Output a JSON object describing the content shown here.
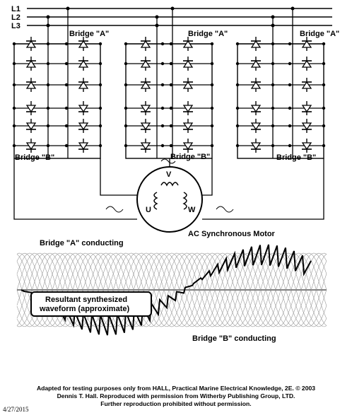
{
  "phases": [
    "L1",
    "L2",
    "L3"
  ],
  "bridge_a_label": "Bridge \"A\"",
  "bridge_b_label": "Bridge \"B\"",
  "motor": {
    "title": "AC Synchronous Motor",
    "windings": [
      "V",
      "U",
      "W"
    ]
  },
  "waveform": {
    "bridge_a_conducting": "Bridge \"A\" conducting",
    "bridge_b_conducting": "Bridge \"B\" conducting",
    "resultant_line1": "Resultant synthesized",
    "resultant_line2": "waveform (approximate)"
  },
  "caption": {
    "line1": "Adapted for testing purposes only from HALL, Practical Marine Electrical Knowledge, 2E. © 2003",
    "line2": "Dennis T. Hall. Reproduced with permission from Witherby Publishing Group, LTD.",
    "line3": "Further reproduction prohibited without permission."
  },
  "date": "4/27/2015"
}
